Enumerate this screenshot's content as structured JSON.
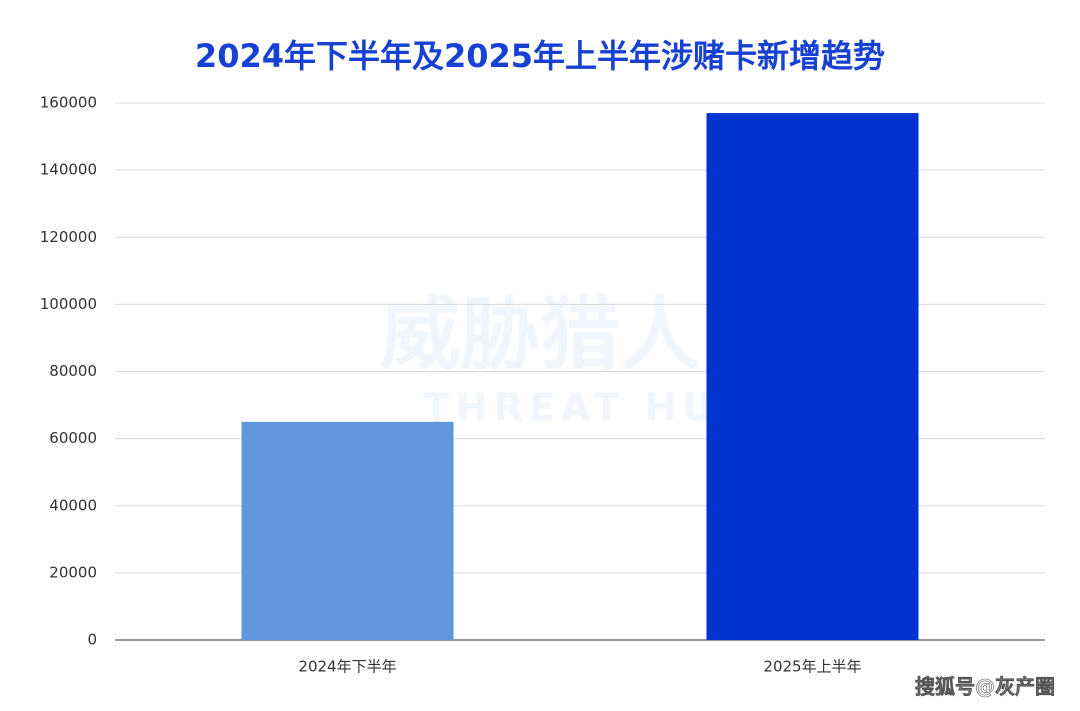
{
  "chart_data": {
    "type": "bar",
    "title": "2024年下半年及2025年上半年涉赌卡新增趋势",
    "categories": [
      "2024年下半年",
      "2025年上半年"
    ],
    "values": [
      65000,
      157000
    ],
    "colors": [
      "#6196df",
      "#0034d1"
    ],
    "ylim": [
      0,
      160000
    ],
    "yticks": [
      0,
      20000,
      40000,
      60000,
      80000,
      100000,
      120000,
      140000,
      160000
    ],
    "grid": true,
    "watermark": "威胁猎人",
    "watermark_subtitle": "THREAT HUNTER",
    "credit": "搜狐号@灰产圈"
  }
}
